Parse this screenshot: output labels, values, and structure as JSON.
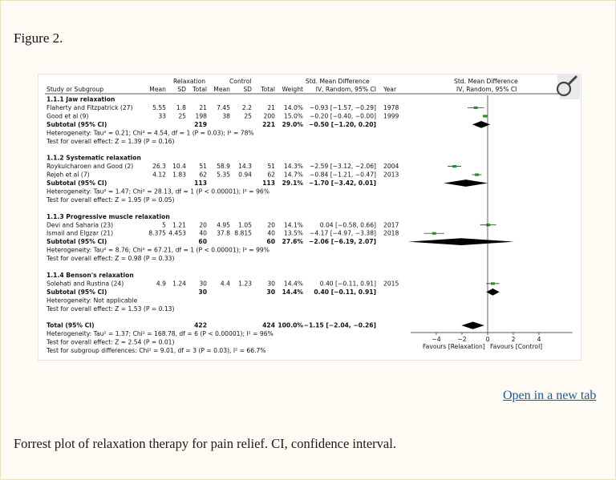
{
  "figure": {
    "title": "Figure 2.",
    "open_link": "Open in a new tab",
    "caption": "Forrest plot of relaxation therapy for pain relief. CI, confidence interval."
  },
  "header": {
    "group1": "Relaxation",
    "group2": "Control",
    "effect_group": "Std. Mean Difference",
    "plot_group": "Std. Mean Difference",
    "study": "Study or Subgroup",
    "mean": "Mean",
    "sd": "SD",
    "total": "Total",
    "weight": "Weight",
    "effect": "IV, Random, 95% CI",
    "year": "Year",
    "plot_effect": "IV, Random, 95% CI"
  },
  "rows": [
    {
      "type": "heading",
      "label": "1.1.1 Jaw relaxation"
    },
    {
      "type": "study",
      "label": "Flaherty and Fitzpatrick (27)",
      "m1": "5.55",
      "sd1": "1.8",
      "n1": "21",
      "m2": "7.45",
      "sd2": "2.2",
      "n2": "21",
      "w": "14.0%",
      "ci": "−0.93 [−1.57, −0.29]",
      "year": "1978",
      "est": -0.93,
      "lo": -1.57,
      "hi": -0.29
    },
    {
      "type": "study",
      "label": "Good et al (9)",
      "m1": "33",
      "sd1": "25",
      "n1": "198",
      "m2": "38",
      "sd2": "25",
      "n2": "200",
      "w": "15.0%",
      "ci": "−0.20 [−0.40, −0.00]",
      "year": "1999",
      "est": -0.2,
      "lo": -0.4,
      "hi": 0.0
    },
    {
      "type": "subtotal",
      "label": "Subtotal (95% CI)",
      "n1": "219",
      "n2": "221",
      "w": "29.0%",
      "ci": "−0.50 [−1.20, 0.20]",
      "est": -0.5,
      "lo": -1.2,
      "hi": 0.2
    },
    {
      "type": "note",
      "label": "Heterogeneity: Tau² = 0.21; Chi² = 4.54, df = 1 (P = 0.03); I² = 78%"
    },
    {
      "type": "note",
      "label": "Test for overall effect: Z = 1.39 (P = 0.16)"
    },
    {
      "type": "blank"
    },
    {
      "type": "heading",
      "label": "1.1.2 Systematic relaxation"
    },
    {
      "type": "study",
      "label": "Roykulcharoen and Good (2)",
      "m1": "26.3",
      "sd1": "10.4",
      "n1": "51",
      "m2": "58.9",
      "sd2": "14.3",
      "n2": "51",
      "w": "14.3%",
      "ci": "−2.59 [−3.12, −2.06]",
      "year": "2004",
      "est": -2.59,
      "lo": -3.12,
      "hi": -2.06
    },
    {
      "type": "study",
      "label": "Rejeh et al (7)",
      "m1": "4.12",
      "sd1": "1.83",
      "n1": "62",
      "m2": "5.35",
      "sd2": "0.94",
      "n2": "62",
      "w": "14.7%",
      "ci": "−0.84 [−1.21, −0.47]",
      "year": "2013",
      "est": -0.84,
      "lo": -1.21,
      "hi": -0.47
    },
    {
      "type": "subtotal",
      "label": "Subtotal (95% CI)",
      "n1": "113",
      "n2": "113",
      "w": "29.1%",
      "ci": "−1.70 [−3.42, 0.01]",
      "est": -1.7,
      "lo": -3.42,
      "hi": 0.01
    },
    {
      "type": "note",
      "label": "Heterogeneity: Tau² = 1.47; Chi² = 28.13, df = 1 (P < 0.00001); I² = 96%"
    },
    {
      "type": "note",
      "label": "Test for overall effect: Z = 1.95 (P = 0.05)"
    },
    {
      "type": "blank"
    },
    {
      "type": "heading",
      "label": "1.1.3 Progressive muscle relaxation"
    },
    {
      "type": "study",
      "label": "Devi and Saharia (23)",
      "m1": "5",
      "sd1": "1.21",
      "n1": "20",
      "m2": "4.95",
      "sd2": "1.05",
      "n2": "20",
      "w": "14.1%",
      "ci": "0.04 [−0.58, 0.66]",
      "year": "2017",
      "est": 0.04,
      "lo": -0.58,
      "hi": 0.66
    },
    {
      "type": "study",
      "label": "Ismail and Elgzar (21)",
      "m1": "8.375",
      "sd1": "4.453",
      "n1": "40",
      "m2": "37.8",
      "sd2": "8.815",
      "n2": "40",
      "w": "13.5%",
      "ci": "−4.17 [−4.97, −3.38]",
      "year": "2018",
      "est": -4.17,
      "lo": -4.97,
      "hi": -3.38
    },
    {
      "type": "subtotal",
      "label": "Subtotal (95% CI)",
      "n1": "60",
      "n2": "60",
      "w": "27.6%",
      "ci": "−2.06 [−6.19, 2.07]",
      "est": -2.06,
      "lo": -6.19,
      "hi": 2.07
    },
    {
      "type": "note",
      "label": "Heterogeneity: Tau² = 8.76; Chi² = 67.21, df = 1 (P < 0.00001); I² = 99%"
    },
    {
      "type": "note",
      "label": "Test for overall effect: Z = 0.98 (P = 0.33)"
    },
    {
      "type": "blank"
    },
    {
      "type": "heading",
      "label": "1.1.4 Benson's relaxation"
    },
    {
      "type": "study",
      "label": "Solehati and Rustina (24)",
      "m1": "4.9",
      "sd1": "1.24",
      "n1": "30",
      "m2": "4.4",
      "sd2": "1.23",
      "n2": "30",
      "w": "14.4%",
      "ci": "0.40 [−0.11, 0.91]",
      "year": "2015",
      "est": 0.4,
      "lo": -0.11,
      "hi": 0.91
    },
    {
      "type": "subtotal",
      "label": "Subtotal (95% CI)",
      "n1": "30",
      "n2": "30",
      "w": "14.4%",
      "ci": "0.40 [−0.11, 0.91]",
      "est": 0.4,
      "lo": -0.11,
      "hi": 0.91
    },
    {
      "type": "note",
      "label": "Heterogeneity: Not applicable"
    },
    {
      "type": "note",
      "label": "Test for overall effect: Z = 1.53 (P = 0.13)"
    },
    {
      "type": "blank"
    },
    {
      "type": "total",
      "label": "Total (95% CI)",
      "n1": "422",
      "n2": "424",
      "w": "100.0%",
      "ci": "−1.15 [−2.04, −0.26]",
      "est": -1.15,
      "lo": -2.04,
      "hi": -0.26
    },
    {
      "type": "note",
      "label": "Heterogeneity: Tau² = 1.37; Chi² = 168.78, df = 6 (P < 0.00001); I² = 96%"
    },
    {
      "type": "note",
      "label": "Test for overall effect: Z = 2.54 (P = 0.01)"
    },
    {
      "type": "note",
      "label": "Test for subgroup differences: Chi² = 9.01, df = 3 (P = 0.03), I² = 66.7%"
    }
  ],
  "axis": {
    "ticks": [
      -4,
      -2,
      0,
      2,
      4
    ],
    "tick_labels": [
      "−4",
      "−2",
      "0",
      "2",
      "4"
    ],
    "favours_left": "Favours [Relaxation]",
    "favours_right": "Favours [Control]"
  },
  "colors": {
    "marker": "#2e8b2e",
    "diamond": "#000000",
    "link": "#1a5a9a"
  }
}
